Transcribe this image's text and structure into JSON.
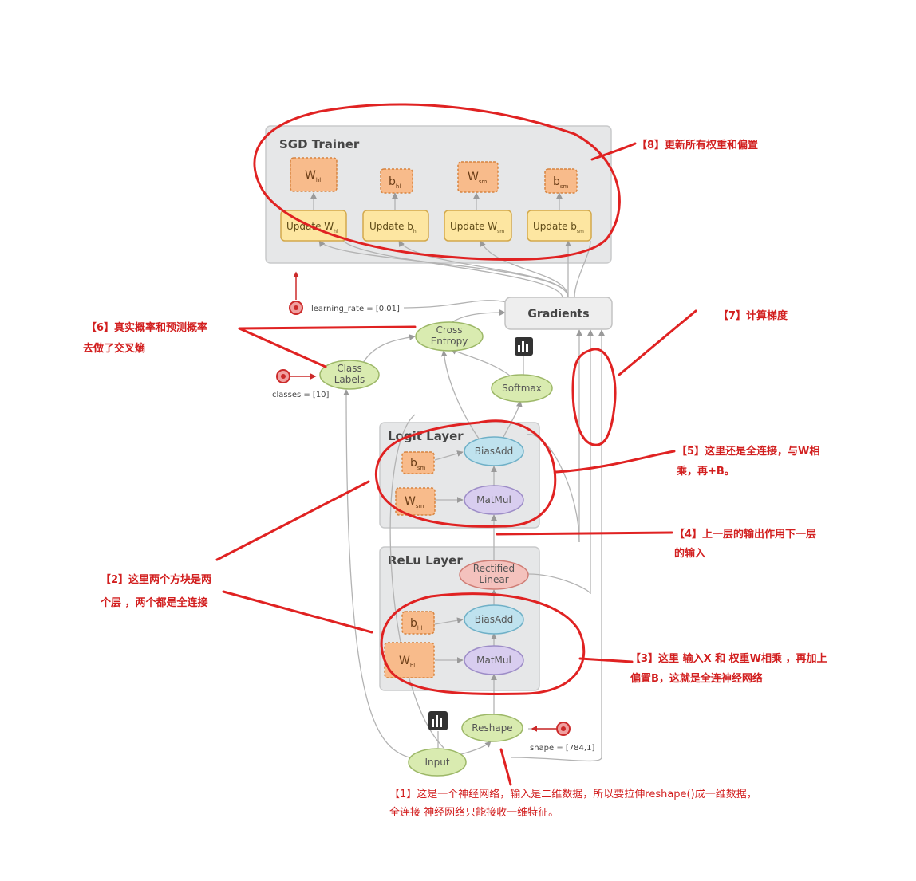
{
  "diagram": {
    "sgd": {
      "title": "SGD Trainer",
      "vars": [
        {
          "base": "W",
          "sub": "hl"
        },
        {
          "base": "b",
          "sub": "hl"
        },
        {
          "base": "W",
          "sub": "sm"
        },
        {
          "base": "b",
          "sub": "sm"
        }
      ],
      "updates": [
        {
          "base": "Update W",
          "sub": "hl"
        },
        {
          "base": "Update b",
          "sub": "hl"
        },
        {
          "base": "Update W",
          "sub": "sm"
        },
        {
          "base": "Update b",
          "sub": "sm"
        }
      ]
    },
    "learning_rate": "learning_rate = [0.01]",
    "gradients": "Gradients",
    "cross_entropy": [
      "Cross",
      "Entropy"
    ],
    "class_labels": [
      "Class",
      "Labels"
    ],
    "classes_param": "classes = [10]",
    "softmax": "Softmax",
    "logit_layer": {
      "title": "Logit Layer",
      "bias_var": {
        "base": "b",
        "sub": "sm"
      },
      "weight_var": {
        "base": "W",
        "sub": "sm"
      },
      "bias_add": "BiasAdd",
      "matmul": "MatMul"
    },
    "relu_layer": {
      "title": "ReLu Layer",
      "rectified": [
        "Rectified",
        "Linear"
      ],
      "bias_var": {
        "base": "b",
        "sub": "hl"
      },
      "weight_var": {
        "base": "W",
        "sub": "hl"
      },
      "bias_add": "BiasAdd",
      "matmul": "MatMul"
    },
    "reshape": "Reshape",
    "shape_param": "shape = [784,1]",
    "input": "Input"
  },
  "annotations": {
    "a1": [
      "【1】这是一个神经网络，输入是二维数据，所以要拉伸reshape()成一维数据，",
      "全连接 神经网络只能接收一维特征。"
    ],
    "a2": [
      "【2】这里两个方块是两",
      "个层  ，两个都是全连接"
    ],
    "a3": [
      "【3】这里 输入X 和  权重W相乘 ，再加上",
      "偏置B，这就是全连神经网络"
    ],
    "a4": [
      "【4】上一层的输出作用下一层",
      "的输入"
    ],
    "a5": [
      "【5】这里还是全连接，与W相",
      "乘，再+B。"
    ],
    "a6": [
      "【6】真实概率和预测概率",
      "去做了交叉熵"
    ],
    "a7": [
      "【7】计算梯度"
    ],
    "a8": [
      "【8】更新所有权重和偏置"
    ]
  },
  "colors": {
    "annotation_red": "#e02222",
    "variable_orange": "#f8bb8b",
    "update_yellow": "#fde6a1",
    "op_green": "#d9ebb0",
    "op_blue": "#bfe2ee",
    "op_purple": "#d8cdef",
    "op_red": "#f4c2bd",
    "panel_gray": "#e6e7e8"
  },
  "icons": [
    "bar-chart-icon",
    "parameter-dot-icon"
  ]
}
